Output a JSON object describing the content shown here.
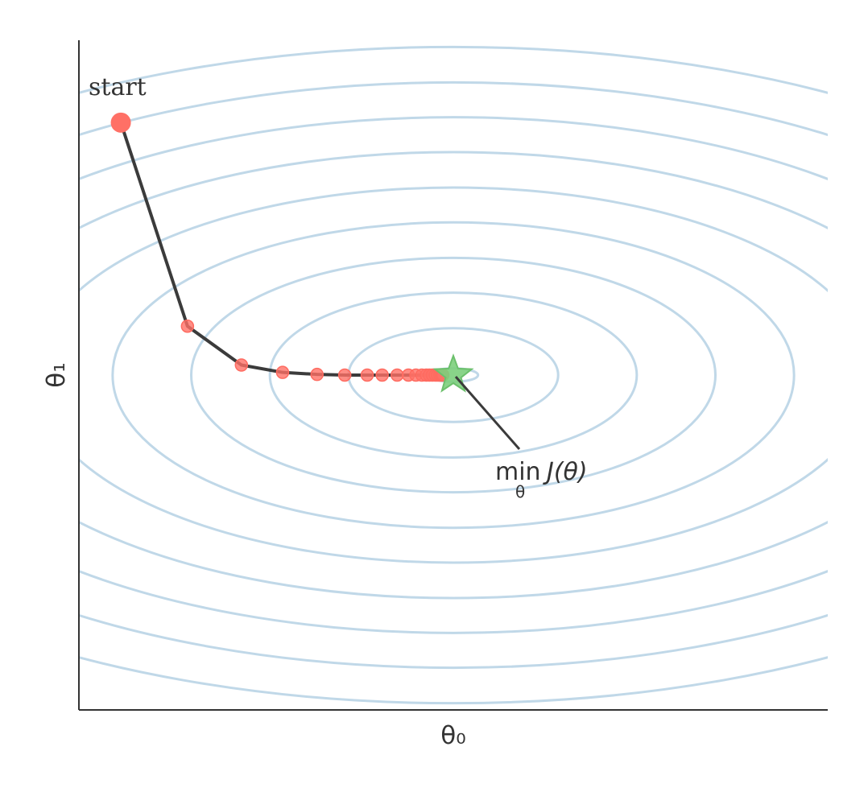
{
  "chart_data": {
    "type": "line",
    "title": "",
    "xlabel": "θ₀",
    "ylabel": "θ₁",
    "xlim": [
      0,
      10
    ],
    "ylim": [
      0,
      10
    ],
    "grid": false,
    "show_ticks": false,
    "contours": {
      "center": [
        5.0,
        5.0
      ],
      "levels": [
        {
          "rx": 0.33,
          "ry": 0.1
        },
        {
          "rx": 1.4,
          "ry": 0.7
        },
        {
          "rx": 2.45,
          "ry": 1.23
        },
        {
          "rx": 3.5,
          "ry": 1.75
        },
        {
          "rx": 4.55,
          "ry": 2.28
        },
        {
          "rx": 5.6,
          "ry": 2.8
        },
        {
          "rx": 6.65,
          "ry": 3.33
        },
        {
          "rx": 7.7,
          "ry": 3.85
        },
        {
          "rx": 8.75,
          "ry": 4.37
        },
        {
          "rx": 9.8,
          "ry": 4.9
        }
      ],
      "color": "#c0d8e8"
    },
    "series": [
      {
        "x": [
          0.56,
          1.45,
          2.17,
          2.72,
          3.18,
          3.55,
          3.85,
          4.05,
          4.25,
          4.4,
          4.5,
          4.58,
          4.64,
          4.68,
          4.72,
          4.76,
          4.79,
          4.82,
          4.84,
          4.86
        ],
        "y": [
          8.77,
          5.73,
          5.15,
          5.04,
          5.01,
          5.0,
          5.0,
          5.0,
          5.0,
          5.0,
          5.0,
          5.0,
          5.0,
          5.0,
          5.0,
          5.0,
          5.0,
          5.0,
          5.0,
          5.0
        ],
        "color": "#ff7066"
      }
    ],
    "minimum": {
      "x": 5.0,
      "y": 5.0,
      "color": "#7ccf7c"
    },
    "annotations": [
      {
        "text": "start",
        "x": 0.56,
        "y": 8.77
      },
      {
        "text_main": "min",
        "text_sub": "θ",
        "text_rest": "J(θ)",
        "x": 5.0,
        "y": 5.0
      }
    ]
  }
}
